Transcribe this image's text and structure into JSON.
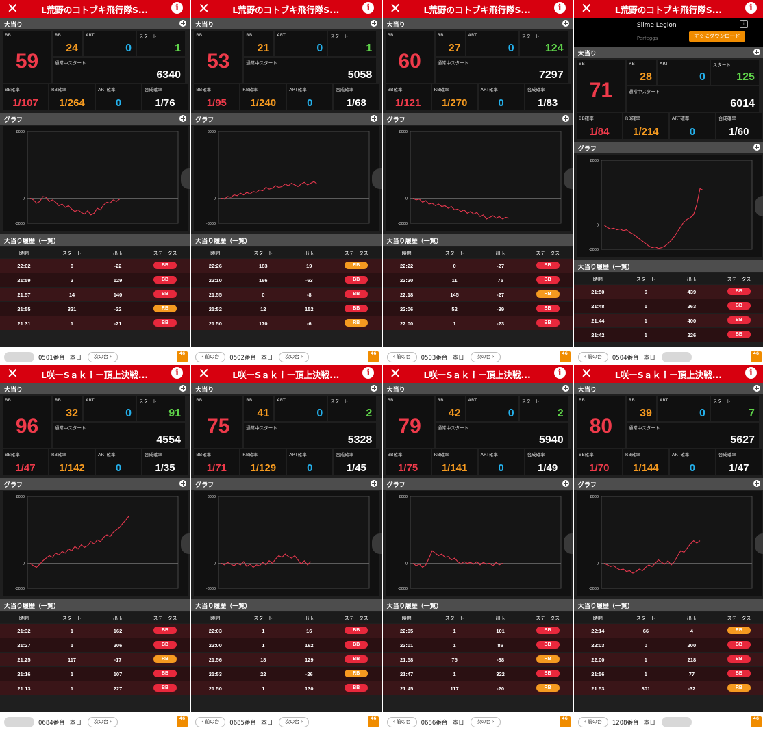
{
  "labels": {
    "jackpot": "大当り",
    "bb": "BB",
    "rb": "RB",
    "art": "ART",
    "start": "スタート",
    "normal_start": "通常中スタート",
    "bb_rate": "BB確率",
    "rb_rate": "RB確率",
    "art_rate": "ART確率",
    "combined_rate": "合成確率",
    "graph": "グラフ",
    "history": "大当り履歴（一覧）",
    "col_time": "時間",
    "col_start": "スタート",
    "col_out": "出玉",
    "col_status": "ステータス",
    "prev": "前の台",
    "next": "次の台",
    "today": "本日",
    "graph_top": "8000",
    "graph_zero": "0",
    "graph_bottom": "-3000",
    "logo": "46"
  },
  "colors": {
    "bb": "#ee3a4a",
    "rb": "#f59a20",
    "art": "#24b1ec",
    "start": "#5fd34a",
    "header": "#d7000f"
  },
  "ad": {
    "title": "Slime Legion",
    "publisher": "Perfeggs",
    "button": "すぐにダウンロード",
    "icon": "i"
  },
  "panels": [
    {
      "title": "L荒野のコトブキ飛行隊S...",
      "bb": "59",
      "rb": "24",
      "art": "0",
      "start": "1",
      "normal_start": "6340",
      "bb_rate": "1/107",
      "rb_rate": "1/264",
      "art_rate": "0",
      "combined_rate": "1/76",
      "machine": "0501番台",
      "prev_disabled": true,
      "next_disabled": false,
      "has_ad": false,
      "graph": [
        0,
        -200,
        -600,
        -400,
        200,
        100,
        -400,
        -200,
        -500,
        -900,
        -700,
        -1100,
        -900,
        -1300,
        -1600,
        -1400,
        -1700,
        -1900,
        -1500,
        -2000,
        -1800,
        -1200,
        -1400,
        -800,
        -500,
        -600,
        -200,
        -400,
        -100
      ],
      "history": [
        {
          "time": "22:02",
          "start": "0",
          "out": "-22",
          "status": "BB"
        },
        {
          "time": "21:59",
          "start": "2",
          "out": "129",
          "status": "BB"
        },
        {
          "time": "21:57",
          "start": "14",
          "out": "140",
          "status": "BB"
        },
        {
          "time": "21:55",
          "start": "321",
          "out": "-22",
          "status": "RB"
        },
        {
          "time": "21:31",
          "start": "1",
          "out": "-21",
          "status": "BB"
        }
      ]
    },
    {
      "title": "L荒野のコトブキ飛行隊S...",
      "bb": "53",
      "rb": "21",
      "art": "0",
      "start": "1",
      "normal_start": "5058",
      "bb_rate": "1/95",
      "rb_rate": "1/240",
      "art_rate": "0",
      "combined_rate": "1/68",
      "machine": "0502番台",
      "prev_disabled": false,
      "next_disabled": false,
      "has_ad": false,
      "graph": [
        0,
        -100,
        200,
        100,
        400,
        300,
        600,
        400,
        700,
        500,
        800,
        700,
        1000,
        900,
        1300,
        1100,
        1200,
        1500,
        1300,
        1400,
        1700,
        1500,
        1800,
        1600,
        1400,
        1700,
        1900,
        1600,
        1800,
        2000,
        1700
      ],
      "history": [
        {
          "time": "22:26",
          "start": "183",
          "out": "19",
          "status": "RB"
        },
        {
          "time": "22:10",
          "start": "166",
          "out": "-63",
          "status": "BB"
        },
        {
          "time": "21:55",
          "start": "0",
          "out": "-8",
          "status": "BB"
        },
        {
          "time": "21:52",
          "start": "12",
          "out": "152",
          "status": "BB"
        },
        {
          "time": "21:50",
          "start": "170",
          "out": "-6",
          "status": "RB"
        }
      ]
    },
    {
      "title": "L荒野のコトブキ飛行隊S...",
      "bb": "60",
      "rb": "27",
      "art": "0",
      "start": "124",
      "normal_start": "7297",
      "bb_rate": "1/121",
      "rb_rate": "1/270",
      "art_rate": "0",
      "combined_rate": "1/83",
      "machine": "0503番台",
      "prev_disabled": false,
      "next_disabled": false,
      "has_ad": false,
      "graph": [
        0,
        -200,
        -100,
        -500,
        -300,
        -700,
        -600,
        -900,
        -700,
        -1000,
        -900,
        -1200,
        -1000,
        -1400,
        -1300,
        -1600,
        -1400,
        -1800,
        -1600,
        -1900,
        -1700,
        -2200,
        -2000,
        -2500,
        -2300,
        -2100,
        -2400,
        -2200,
        -2500,
        -2300,
        -2400
      ],
      "history": [
        {
          "time": "22:22",
          "start": "0",
          "out": "-27",
          "status": "BB"
        },
        {
          "time": "22:20",
          "start": "11",
          "out": "75",
          "status": "BB"
        },
        {
          "time": "22:18",
          "start": "145",
          "out": "-27",
          "status": "RB"
        },
        {
          "time": "22:06",
          "start": "52",
          "out": "-39",
          "status": "BB"
        },
        {
          "time": "22:00",
          "start": "1",
          "out": "-23",
          "status": "BB"
        }
      ]
    },
    {
      "title": "L荒野のコトブキ飛行隊S...",
      "bb": "71",
      "rb": "28",
      "art": "0",
      "start": "125",
      "normal_start": "6014",
      "bb_rate": "1/84",
      "rb_rate": "1/214",
      "art_rate": "0",
      "combined_rate": "1/60",
      "machine": "0504番台",
      "prev_disabled": false,
      "next_disabled": true,
      "has_ad": true,
      "graph": [
        0,
        -300,
        -500,
        -400,
        -600,
        -500,
        -700,
        -600,
        -900,
        -1100,
        -1400,
        -1700,
        -2000,
        -2300,
        -2600,
        -2800,
        -2700,
        -2900,
        -2800,
        -2600,
        -2300,
        -1900,
        -1400,
        -800,
        -200,
        400,
        700,
        900,
        1300,
        2500,
        4500,
        4300
      ],
      "history": [
        {
          "time": "21:50",
          "start": "6",
          "out": "439",
          "status": "BB"
        },
        {
          "time": "21:48",
          "start": "1",
          "out": "263",
          "status": "BB"
        },
        {
          "time": "21:44",
          "start": "1",
          "out": "400",
          "status": "BB"
        },
        {
          "time": "21:42",
          "start": "1",
          "out": "226",
          "status": "BB"
        }
      ]
    },
    {
      "title": "L咲ーSａｋｉー頂上決戦...",
      "bb": "96",
      "rb": "32",
      "art": "0",
      "start": "91",
      "normal_start": "4554",
      "bb_rate": "1/47",
      "rb_rate": "1/142",
      "art_rate": "0",
      "combined_rate": "1/35",
      "machine": "0684番台",
      "prev_disabled": true,
      "next_disabled": false,
      "has_ad": false,
      "graph": [
        0,
        -300,
        -500,
        -100,
        300,
        600,
        900,
        700,
        1200,
        1000,
        1400,
        1200,
        1700,
        1500,
        2000,
        1700,
        2200,
        1900,
        2100,
        2600,
        2300,
        2800,
        2600,
        3100,
        3400,
        3200,
        3700,
        4000,
        4300,
        4800,
        5200,
        5700
      ],
      "history": [
        {
          "time": "21:32",
          "start": "1",
          "out": "162",
          "status": "BB"
        },
        {
          "time": "21:27",
          "start": "1",
          "out": "206",
          "status": "BB"
        },
        {
          "time": "21:25",
          "start": "117",
          "out": "-17",
          "status": "RB"
        },
        {
          "time": "21:16",
          "start": "1",
          "out": "107",
          "status": "BB"
        },
        {
          "time": "21:13",
          "start": "1",
          "out": "227",
          "status": "BB"
        }
      ]
    },
    {
      "title": "L咲ーSａｋｉー頂上決戦...",
      "bb": "75",
      "rb": "41",
      "art": "0",
      "start": "2",
      "normal_start": "5328",
      "bb_rate": "1/71",
      "rb_rate": "1/129",
      "art_rate": "0",
      "combined_rate": "1/45",
      "machine": "0685番台",
      "prev_disabled": false,
      "next_disabled": false,
      "has_ad": false,
      "graph": [
        0,
        -200,
        100,
        -100,
        -300,
        0,
        -200,
        200,
        -400,
        -100,
        -500,
        -200,
        -300,
        100,
        -200,
        300,
        0,
        500,
        900,
        700,
        1100,
        800,
        600,
        900,
        400,
        -100,
        300,
        -200,
        200
      ],
      "history": [
        {
          "time": "22:03",
          "start": "1",
          "out": "16",
          "status": "BB"
        },
        {
          "time": "22:00",
          "start": "1",
          "out": "162",
          "status": "BB"
        },
        {
          "time": "21:56",
          "start": "18",
          "out": "129",
          "status": "BB"
        },
        {
          "time": "21:53",
          "start": "22",
          "out": "-26",
          "status": "RB"
        },
        {
          "time": "21:50",
          "start": "1",
          "out": "130",
          "status": "BB"
        }
      ]
    },
    {
      "title": "L咲ーSａｋｉー頂上決戦...",
      "bb": "79",
      "rb": "42",
      "art": "0",
      "start": "2",
      "normal_start": "5940",
      "bb_rate": "1/75",
      "rb_rate": "1/141",
      "art_rate": "0",
      "combined_rate": "1/49",
      "machine": "0686番台",
      "prev_disabled": false,
      "next_disabled": false,
      "has_ad": false,
      "graph": [
        0,
        -300,
        -100,
        -500,
        -200,
        600,
        1500,
        1200,
        900,
        1100,
        700,
        800,
        400,
        600,
        200,
        -100,
        200,
        0,
        100,
        -100,
        200,
        -200,
        100,
        -100,
        0,
        -300,
        100,
        -200,
        0
      ],
      "history": [
        {
          "time": "22:05",
          "start": "1",
          "out": "101",
          "status": "BB"
        },
        {
          "time": "22:01",
          "start": "1",
          "out": "86",
          "status": "BB"
        },
        {
          "time": "21:58",
          "start": "75",
          "out": "-38",
          "status": "RB"
        },
        {
          "time": "21:47",
          "start": "1",
          "out": "322",
          "status": "BB"
        },
        {
          "time": "21:45",
          "start": "117",
          "out": "-20",
          "status": "RB"
        }
      ]
    },
    {
      "title": "L咲ーSａｋｉー頂上決戦...",
      "bb": "80",
      "rb": "39",
      "art": "0",
      "start": "7",
      "normal_start": "5627",
      "bb_rate": "1/70",
      "rb_rate": "1/144",
      "art_rate": "0",
      "combined_rate": "1/47",
      "machine": "1208番台",
      "prev_disabled": false,
      "next_disabled": true,
      "has_ad": false,
      "graph": [
        0,
        -200,
        -400,
        -300,
        -600,
        -800,
        -700,
        -1000,
        -900,
        -1200,
        -1000,
        -700,
        -900,
        -500,
        -200,
        -400,
        0,
        400,
        100,
        -100,
        300,
        -200,
        200,
        900,
        1500,
        1300,
        1800,
        2300,
        2700,
        2400,
        2700
      ],
      "history": [
        {
          "time": "22:14",
          "start": "66",
          "out": "4",
          "status": "RB"
        },
        {
          "time": "22:03",
          "start": "0",
          "out": "200",
          "status": "BB"
        },
        {
          "time": "22:00",
          "start": "1",
          "out": "218",
          "status": "BB"
        },
        {
          "time": "21:56",
          "start": "1",
          "out": "77",
          "status": "BB"
        },
        {
          "time": "21:53",
          "start": "301",
          "out": "-32",
          "status": "RB"
        }
      ]
    }
  ]
}
